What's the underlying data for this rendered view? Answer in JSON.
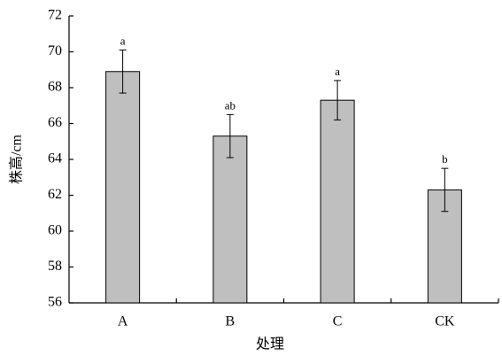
{
  "chart_data": {
    "type": "bar",
    "x_label": "处理",
    "y_label": "株高/cm",
    "categories": [
      "A",
      "B",
      "C",
      "CK"
    ],
    "values": [
      68.9,
      65.3,
      67.3,
      62.3
    ],
    "errors": [
      1.2,
      1.2,
      1.1,
      1.2
    ],
    "significance": [
      "a",
      "ab",
      "a",
      "b"
    ],
    "color": "#bfbfbf",
    "ylim": [
      56,
      72
    ],
    "yticks": [
      56,
      58,
      60,
      62,
      64,
      66,
      68,
      70,
      72
    ],
    "grid": false
  }
}
